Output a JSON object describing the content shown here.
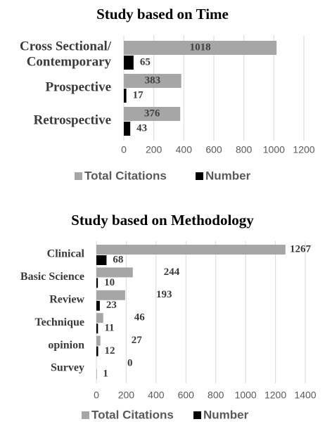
{
  "chart_data": [
    {
      "type": "bar",
      "orientation": "horizontal",
      "title": "Study based on Time",
      "categories": [
        "Cross Sectional/ Contemporary",
        "Prospective",
        "Retrospective"
      ],
      "series": [
        {
          "name": "Total Citations",
          "color": "#a6a6a6",
          "values": [
            1018,
            383,
            376
          ]
        },
        {
          "name": "Number",
          "color": "#000000",
          "values": [
            65,
            17,
            43
          ]
        }
      ],
      "xlim": [
        0,
        1200
      ],
      "xticks": [
        0,
        200,
        400,
        600,
        800,
        1000,
        1200
      ],
      "grid": true,
      "legend": "bottom"
    },
    {
      "type": "bar",
      "orientation": "horizontal",
      "title": "Study based on Methodology",
      "categories": [
        "Clinical",
        "Basic Science",
        "Review",
        "Technique",
        "opinion",
        "Survey"
      ],
      "series": [
        {
          "name": "Total Citations",
          "color": "#a6a6a6",
          "values": [
            1267,
            244,
            193,
            46,
            27,
            0
          ]
        },
        {
          "name": "Number",
          "color": "#000000",
          "values": [
            68,
            10,
            23,
            11,
            12,
            1
          ]
        }
      ],
      "xlim": [
        0,
        1400
      ],
      "xticks": [
        0,
        200,
        400,
        600,
        800,
        1000,
        1200,
        1400
      ],
      "grid": true,
      "legend": "bottom"
    }
  ]
}
